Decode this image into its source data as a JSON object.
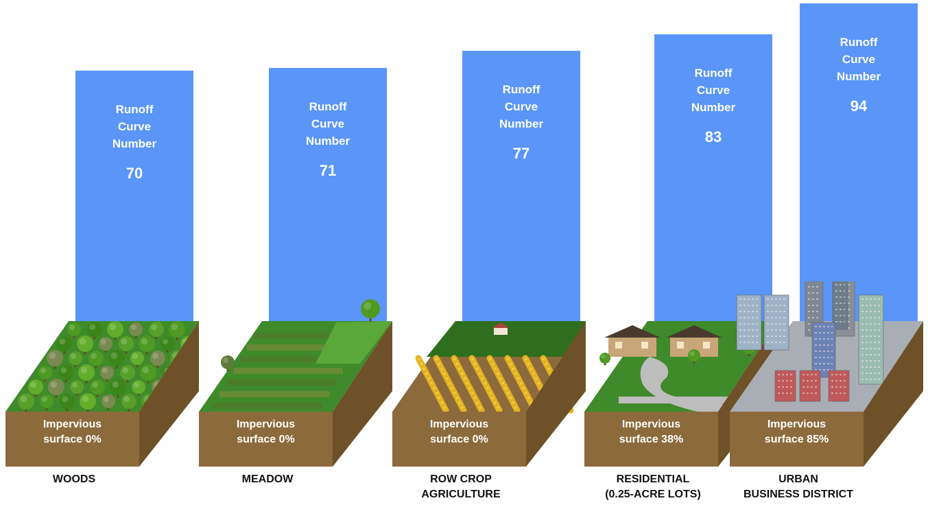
{
  "colors": {
    "bar": "#5a96f8",
    "soil_front": "#8c6a3c",
    "soil_side": "#6e5128",
    "grass": "#3f8a2a",
    "text": "#111111"
  },
  "chart_data": {
    "type": "bar",
    "series_label": [
      "Runoff",
      "Curve",
      "Number"
    ],
    "categories": [
      {
        "lines": [
          "WOODS"
        ],
        "curve_number": 70,
        "impervious_label": [
          "Impervious",
          "surface 0%"
        ],
        "impervious_pct": 0,
        "icon": "forest-icon"
      },
      {
        "lines": [
          "MEADOW"
        ],
        "curve_number": 71,
        "impervious_label": [
          "Impervious",
          "surface 0%"
        ],
        "impervious_pct": 0,
        "icon": "meadow-icon"
      },
      {
        "lines": [
          "ROW CROP",
          "AGRICULTURE"
        ],
        "curve_number": 77,
        "impervious_label": [
          "Impervious",
          "surface 0%"
        ],
        "impervious_pct": 0,
        "icon": "crops-icon"
      },
      {
        "lines": [
          "RESIDENTIAL",
          "(0.25-ACRE LOTS)"
        ],
        "curve_number": 83,
        "impervious_label": [
          "Impervious",
          "surface 38%"
        ],
        "impervious_pct": 38,
        "icon": "houses-icon"
      },
      {
        "lines": [
          "URBAN",
          "BUSINESS DISTRICT"
        ],
        "curve_number": 94,
        "impervious_label": [
          "Impervious",
          "surface 85%"
        ],
        "impervious_pct": 85,
        "icon": "city-icon"
      }
    ]
  }
}
